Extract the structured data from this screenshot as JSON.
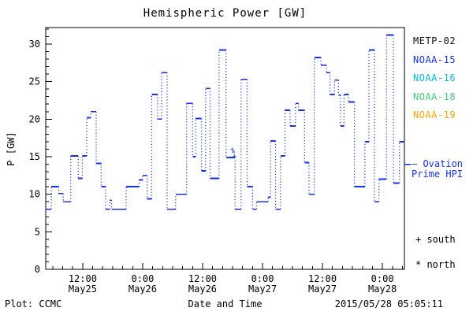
{
  "title": "Hemispheric Power [GW]",
  "y_axis_label": "P [GW]",
  "x_axis_label": "Date and Time",
  "footer": {
    "credit": "Plot: CCMC",
    "timestamp": "2015/05/28 05:05:11"
  },
  "colors": {
    "axis": "#000000",
    "data_blue": "#1430ee",
    "background": "#ffffff"
  },
  "legend": {
    "satellites": [
      {
        "label": "METP-02",
        "color": "#111111"
      },
      {
        "label": "NOAA-15",
        "color": "#1430ee"
      },
      {
        "label": "NOAA-16",
        "color": "#00bbee"
      },
      {
        "label": "NOAA-18",
        "color": "#44cc77"
      },
      {
        "label": "NOAA-19",
        "color": "#ffa500"
      }
    ],
    "ovation": {
      "line1": "— Ovation",
      "line2": "Prime HPI",
      "color": "#1430ee"
    },
    "south_label": "+ south",
    "north_label": "* north"
  },
  "chart_data": {
    "type": "line",
    "subtype": "step-post",
    "title": "Hemispheric Power [GW]",
    "xlabel": "Date and Time",
    "ylabel": "P [GW]",
    "grid": false,
    "ylim": [
      0,
      32.2
    ],
    "y_major_ticks": [
      0,
      5,
      10,
      15,
      20,
      25,
      30
    ],
    "y_minor_step": 1,
    "x_hours_range": [
      4.6,
      76.4
    ],
    "x_hours_epoch": "hours since 2015-05-25 00:00",
    "x_minor_step_hours": 2,
    "x_ticks": [
      {
        "hour": 12,
        "time": "12:00",
        "date": "May25"
      },
      {
        "hour": 24,
        "time": "0:00",
        "date": "May26"
      },
      {
        "hour": 36,
        "time": "12:00",
        "date": "May26"
      },
      {
        "hour": 48,
        "time": "0:00",
        "date": "May27"
      },
      {
        "hour": 60,
        "time": "12:00",
        "date": "May27"
      },
      {
        "hour": 72,
        "time": "0:00",
        "date": "May28"
      }
    ],
    "series": [
      {
        "name": "NOAA-15",
        "color": "#1430ee",
        "style": "solid horizontal steps, dotted vertical connectors",
        "steps_hour_gw": [
          [
            4.6,
            8.0
          ],
          [
            5.7,
            11.0
          ],
          [
            7.2,
            10.1
          ],
          [
            8.1,
            9.0
          ],
          [
            9.6,
            15.1
          ],
          [
            11.1,
            12.1
          ],
          [
            11.9,
            15.1
          ],
          [
            12.8,
            20.2
          ],
          [
            13.6,
            21.0
          ],
          [
            14.7,
            14.1
          ],
          [
            15.7,
            11.0
          ],
          [
            16.6,
            8.0
          ],
          [
            17.4,
            9.2
          ],
          [
            17.8,
            8.0
          ],
          [
            20.7,
            11.0
          ],
          [
            23.3,
            11.9
          ],
          [
            24.0,
            12.5
          ],
          [
            24.9,
            9.4
          ],
          [
            25.8,
            23.3
          ],
          [
            27.0,
            20.0
          ],
          [
            27.8,
            26.2
          ],
          [
            28.9,
            8.0
          ],
          [
            30.6,
            10.0
          ],
          [
            32.8,
            22.1
          ],
          [
            34.0,
            15.0
          ],
          [
            34.6,
            20.1
          ],
          [
            35.8,
            13.1
          ],
          [
            36.6,
            24.1
          ],
          [
            37.5,
            12.1
          ],
          [
            39.3,
            29.2
          ],
          [
            40.7,
            14.9
          ],
          [
            42.5,
            8.0
          ],
          [
            43.7,
            25.3
          ],
          [
            44.9,
            11.0
          ],
          [
            46.0,
            8.0
          ],
          [
            46.8,
            9.0
          ],
          [
            49.1,
            9.6
          ],
          [
            49.6,
            17.1
          ],
          [
            50.6,
            8.0
          ],
          [
            51.6,
            15.1
          ],
          [
            52.5,
            21.2
          ],
          [
            53.5,
            19.1
          ],
          [
            54.6,
            22.1
          ],
          [
            55.2,
            21.2
          ],
          [
            56.4,
            14.2
          ],
          [
            57.3,
            10.0
          ],
          [
            58.4,
            28.2
          ],
          [
            59.7,
            27.2
          ],
          [
            60.8,
            26.2
          ],
          [
            61.5,
            23.3
          ],
          [
            62.4,
            25.2
          ],
          [
            63.2,
            23.2
          ],
          [
            63.6,
            19.1
          ],
          [
            64.3,
            23.3
          ],
          [
            65.2,
            22.3
          ],
          [
            66.4,
            11.0
          ],
          [
            68.5,
            17.0
          ],
          [
            69.3,
            29.2
          ],
          [
            70.4,
            9.0
          ],
          [
            71.3,
            12.0
          ],
          [
            72.8,
            31.2
          ],
          [
            74.2,
            11.5
          ],
          [
            75.4,
            17.0
          ],
          [
            76.4,
            17.0
          ]
        ]
      }
    ],
    "markers": [
      {
        "hour": 41.95,
        "gw": 16.0,
        "glyph": "+",
        "meaning": "south"
      },
      {
        "hour": 42.2,
        "gw": 15.45,
        "glyph": "*",
        "meaning": "north"
      },
      {
        "hour": 42.4,
        "gw": 15.1,
        "glyph": "+",
        "meaning": "south"
      }
    ],
    "ovation_axis_tick_gw": 14.0,
    "legend_position": "right"
  }
}
